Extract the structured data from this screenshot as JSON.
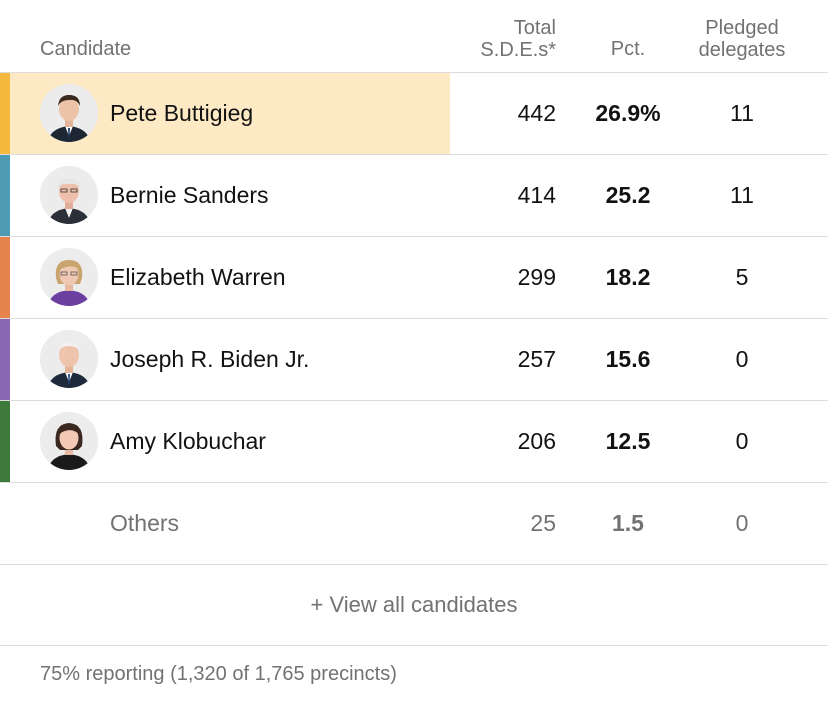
{
  "header": {
    "candidate": "Candidate",
    "sde_line1": "Total",
    "sde_line2": "S.D.E.s*",
    "pct": "Pct.",
    "del_line1": "Pledged",
    "del_line2": "delegates"
  },
  "rows": [
    {
      "name": "Pete Buttigieg",
      "sde": "442",
      "pct": "26.9%",
      "delegates": "11",
      "color": "#f4b83f",
      "highlight": "#fde9c3",
      "icon": "candidate-photo-icon"
    },
    {
      "name": "Bernie Sanders",
      "sde": "414",
      "pct": "25.2",
      "delegates": "11",
      "color": "#4d9ab3",
      "icon": "candidate-photo-icon"
    },
    {
      "name": "Elizabeth Warren",
      "sde": "299",
      "pct": "18.2",
      "delegates": "5",
      "color": "#e5834d",
      "icon": "candidate-photo-icon"
    },
    {
      "name": "Joseph R. Biden Jr.",
      "sde": "257",
      "pct": "15.6",
      "delegates": "0",
      "color": "#8a67b1",
      "icon": "candidate-photo-icon"
    },
    {
      "name": "Amy Klobuchar",
      "sde": "206",
      "pct": "12.5",
      "delegates": "0",
      "color": "#3f7a3d",
      "icon": "candidate-photo-icon"
    }
  ],
  "others": {
    "name": "Others",
    "sde": "25",
    "pct": "1.5",
    "delegates": "0"
  },
  "view_all": "+ View all candidates",
  "footer": "75% reporting (1,320 of 1,765 precincts)"
}
